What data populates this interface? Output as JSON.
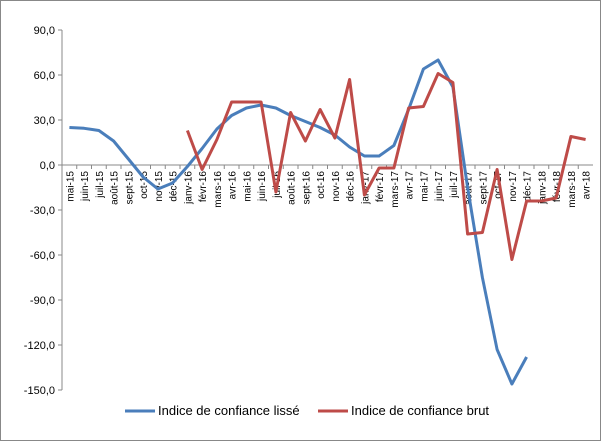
{
  "chart_data": {
    "type": "line",
    "categories": [
      "mai-15",
      "juin-15",
      "juil-15",
      "août-15",
      "sept-15",
      "oct-15",
      "nov-15",
      "déc-15",
      "janv-16",
      "févr-16",
      "mars-16",
      "avr-16",
      "mai-16",
      "juin-16",
      "juil-16",
      "août-16",
      "sept-16",
      "oct-16",
      "nov-16",
      "déc-16",
      "janv-17",
      "févr-17",
      "mars-17",
      "avr-17",
      "mai-17",
      "juin-17",
      "juil-17",
      "août-17",
      "sept-17",
      "oct-17",
      "nov-17",
      "déc-17",
      "janv-18",
      "févr-18",
      "mars-18",
      "avr-18"
    ],
    "series": [
      {
        "name": "Indice de confiance lissé",
        "color": "#4a7ebb",
        "values": [
          25,
          24.5,
          23,
          16,
          4,
          -8,
          -16,
          -12,
          -1,
          11,
          24,
          33,
          38,
          40,
          38,
          33,
          29,
          25,
          20,
          12,
          6,
          6,
          13,
          37,
          64,
          70,
          52,
          -15,
          -75,
          -123,
          -146,
          -128,
          null,
          null,
          null,
          null
        ]
      },
      {
        "name": "Indice de confiance brut",
        "color": "#be4b48",
        "values": [
          null,
          null,
          null,
          null,
          null,
          null,
          null,
          null,
          23,
          -3,
          17,
          42,
          42,
          42,
          -18,
          35,
          16,
          37,
          18,
          57,
          -20,
          -2,
          -2,
          38,
          39,
          61,
          55,
          -46,
          -45,
          -3,
          -63,
          -24,
          -24,
          -22,
          19,
          17
        ]
      }
    ],
    "ylim": [
      -150,
      90
    ],
    "yticks": [
      {
        "value": 90,
        "label": "90,0"
      },
      {
        "value": 60,
        "label": "60,0"
      },
      {
        "value": 30,
        "label": "30,0"
      },
      {
        "value": 0,
        "label": "0,0"
      },
      {
        "value": -30,
        "label": "-30,0"
      },
      {
        "value": -60,
        "label": "-60,0"
      },
      {
        "value": -90,
        "label": "-90,0"
      },
      {
        "value": -120,
        "label": "-120,0"
      },
      {
        "value": -150,
        "label": "-150,0"
      }
    ],
    "legend": "bottom"
  }
}
